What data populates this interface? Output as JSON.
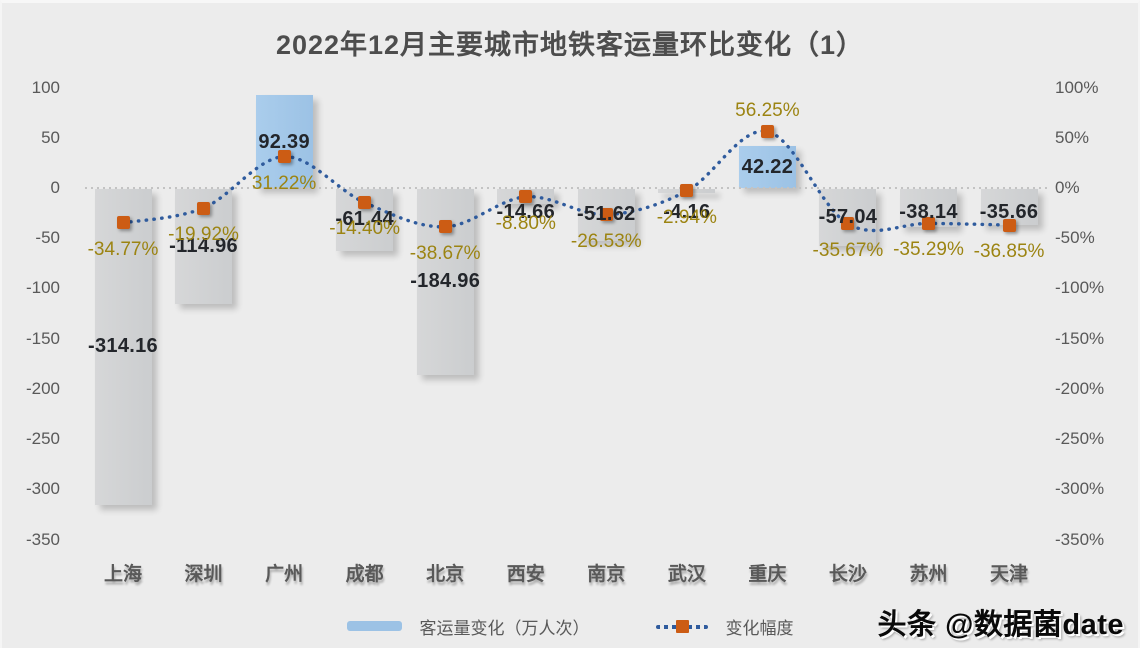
{
  "title": "2022年12月主要城市地铁客运量环比变化（1）",
  "watermark": "头条 @数据菌date",
  "legend": {
    "bar_label": "客运量变化（万人次）",
    "line_label": "变化幅度"
  },
  "colors": {
    "background": "#ECECEC",
    "bar_positive": "#9CC2E5",
    "bar_negative": "#CFD1D3",
    "line": "#2F5B9D",
    "marker": "#CC5C14",
    "pct_label_text": "#9C8412",
    "value_label_text": "#23262B",
    "axis_text": "#595959"
  },
  "chart_data": {
    "type": "bar",
    "subtype": "bar+line combo, dual axis",
    "title": "2022年12月主要城市地铁客运量环比变化（1）",
    "categories": [
      "上海",
      "深圳",
      "广州",
      "成都",
      "北京",
      "西安",
      "南京",
      "武汉",
      "重庆",
      "长沙",
      "苏州",
      "天津"
    ],
    "series": [
      {
        "name": "客运量变化（万人次）",
        "type": "bar",
        "axis": "left",
        "values": [
          -314.16,
          -114.96,
          92.39,
          -61.44,
          -184.96,
          -14.66,
          -51.62,
          -4.16,
          42.22,
          -57.04,
          -38.14,
          -35.66
        ]
      },
      {
        "name": "变化幅度",
        "type": "line",
        "style": "dotted, smoothed, square markers",
        "axis": "right",
        "unit": "%",
        "values": [
          -34.77,
          -19.92,
          31.22,
          -14.4,
          -38.67,
          -8.8,
          -26.53,
          -2.94,
          56.25,
          -35.67,
          -35.29,
          -36.85
        ]
      }
    ],
    "left_axis": {
      "ticks": [
        100,
        50,
        0,
        -50,
        -100,
        -150,
        -200,
        -250,
        -300,
        -350
      ],
      "range": [
        -350,
        100
      ]
    },
    "right_axis": {
      "ticks": [
        "100%",
        "50%",
        "0%",
        "-50%",
        "-100%",
        "-150%",
        "-200%",
        "-250%",
        "-300%",
        "-350%"
      ],
      "range_pct": [
        -350,
        100
      ]
    },
    "grid": "zero line only, dotted",
    "legend_position": "bottom",
    "data_labels": "on (bars: value, line: percent)"
  }
}
